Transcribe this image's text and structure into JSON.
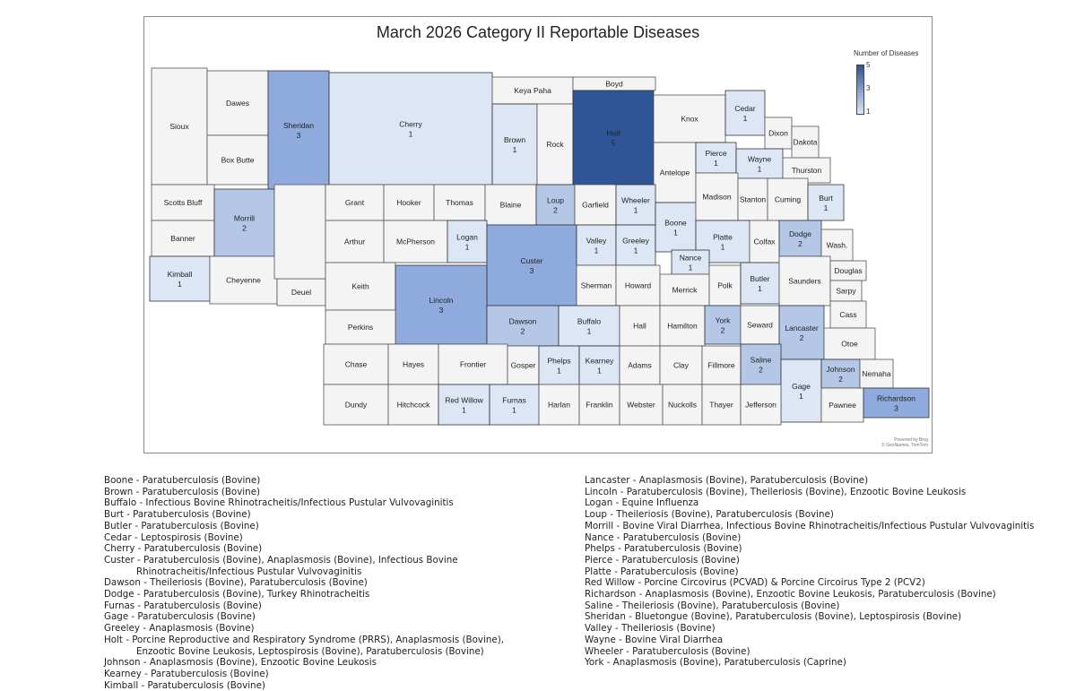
{
  "title": "March 2026 Category II Reportable Diseases",
  "legend": {
    "title": "Number of Diseases",
    "ticks": [
      "5",
      "3",
      "1"
    ],
    "min_color": "#dce6f4",
    "max_color": "#2f5597"
  },
  "credit": [
    "Powered by Bing",
    "© GeoNames, TomTom"
  ],
  "colors": {
    "0": "#f4f4f4",
    "1": "#dce6f4",
    "2": "#b4c7e7",
    "3": "#8faadc",
    "5": "#2f5597"
  },
  "counties": [
    {
      "name": "Sioux"
    },
    {
      "name": "Dawes"
    },
    {
      "name": "Box Butte"
    },
    {
      "name": "Sheridan",
      "count": 3
    },
    {
      "name": "Cherry",
      "count": 1
    },
    {
      "name": "Keya Paha"
    },
    {
      "name": "Boyd"
    },
    {
      "name": "Brown",
      "count": 1
    },
    {
      "name": "Rock"
    },
    {
      "name": "Holt",
      "count": 5
    },
    {
      "name": "Knox"
    },
    {
      "name": "Cedar",
      "count": 1
    },
    {
      "name": "Dixon"
    },
    {
      "name": "Dakota"
    },
    {
      "name": "Antelope"
    },
    {
      "name": "Pierce",
      "count": 1
    },
    {
      "name": "Wayne",
      "count": 1
    },
    {
      "name": "Thurston"
    },
    {
      "name": "Scotts Bluff"
    },
    {
      "name": "Banner"
    },
    {
      "name": "Kimball",
      "count": 1
    },
    {
      "name": "Morrill",
      "count": 2
    },
    {
      "name": "Cheyenne"
    },
    {
      "name": "Deuel"
    },
    {
      "name": ""
    },
    {
      "name": "Grant"
    },
    {
      "name": "Hooker"
    },
    {
      "name": "Thomas"
    },
    {
      "name": "Blaine"
    },
    {
      "name": "Loup",
      "count": 2
    },
    {
      "name": "Garfield"
    },
    {
      "name": "Wheeler",
      "count": 1
    },
    {
      "name": "Arthur"
    },
    {
      "name": "McPherson"
    },
    {
      "name": "Logan",
      "count": 1
    },
    {
      "name": "Custer",
      "count": 3
    },
    {
      "name": "Valley",
      "count": 1
    },
    {
      "name": "Greeley",
      "count": 1
    },
    {
      "name": "Boone",
      "count": 1
    },
    {
      "name": "Madison"
    },
    {
      "name": "Stanton"
    },
    {
      "name": "Cuming"
    },
    {
      "name": "Burt",
      "count": 1
    },
    {
      "name": "Platte",
      "count": 1
    },
    {
      "name": "Colfax"
    },
    {
      "name": "Dodge",
      "count": 2
    },
    {
      "name": "Wash."
    },
    {
      "name": "Nance",
      "count": 1
    },
    {
      "name": "Keith"
    },
    {
      "name": "Lincoln",
      "count": 3
    },
    {
      "name": "Perkins"
    },
    {
      "name": "Sherman"
    },
    {
      "name": "Howard"
    },
    {
      "name": "Merrick"
    },
    {
      "name": "Polk"
    },
    {
      "name": "Butler",
      "count": 1
    },
    {
      "name": "Saunders"
    },
    {
      "name": "Douglas"
    },
    {
      "name": "Sarpy"
    },
    {
      "name": "Cass"
    },
    {
      "name": "Dawson",
      "count": 2
    },
    {
      "name": "Buffalo",
      "count": 1
    },
    {
      "name": "Hall"
    },
    {
      "name": "Hamilton"
    },
    {
      "name": "York",
      "count": 2
    },
    {
      "name": "Seward"
    },
    {
      "name": "Lancaster",
      "count": 2
    },
    {
      "name": "Otoe"
    },
    {
      "name": "Chase"
    },
    {
      "name": "Hayes"
    },
    {
      "name": "Frontier"
    },
    {
      "name": "Gosper"
    },
    {
      "name": "Phelps",
      "count": 1
    },
    {
      "name": "Kearney",
      "count": 1
    },
    {
      "name": "Adams"
    },
    {
      "name": "Clay"
    },
    {
      "name": "Fillmore"
    },
    {
      "name": "Saline",
      "count": 2
    },
    {
      "name": "Gage",
      "count": 1
    },
    {
      "name": "Johnson",
      "count": 2
    },
    {
      "name": "Nemaha"
    },
    {
      "name": "Dundy"
    },
    {
      "name": "Hitchcock"
    },
    {
      "name": "Red Willow",
      "count": 1
    },
    {
      "name": "Furnas",
      "count": 1
    },
    {
      "name": "Harlan"
    },
    {
      "name": "Franklin"
    },
    {
      "name": "Webster"
    },
    {
      "name": "Nuckolls"
    },
    {
      "name": "Thayer"
    },
    {
      "name": "Jefferson"
    },
    {
      "name": "Pawnee"
    },
    {
      "name": "Richardson",
      "count": 3
    }
  ],
  "list_left": [
    {
      "text": "Boone - Paratuberculosis (Bovine)"
    },
    {
      "text": "Brown - Paratuberculosis (Bovine)"
    },
    {
      "text": "Buffalo - Infectious Bovine Rhinotracheitis/Infectious Pustular Vulvovaginitis"
    },
    {
      "text": "Burt - Paratuberculosis (Bovine)"
    },
    {
      "text": "Butler - Paratuberculosis (Bovine)"
    },
    {
      "text": "Cedar - Leptospirosis (Bovine)"
    },
    {
      "text": "Cherry - Paratuberculosis (Bovine)"
    },
    {
      "text": "Custer - Paratuberculosis (Bovine), Anaplasmosis (Bovine), Infectious Bovine"
    },
    {
      "text": "Rhinotracheitis/Infectious Pustular Vulvovaginitis",
      "cont": true
    },
    {
      "text": "Dawson - Theileriosis (Bovine), Paratuberculosis (Bovine)"
    },
    {
      "text": "Dodge - Paratuberculosis (Bovine), Turkey Rhinotracheitis"
    },
    {
      "text": "Furnas - Paratuberculosis (Bovine)"
    },
    {
      "text": "Gage - Paratuberculosis (Bovine)"
    },
    {
      "text": "Greeley - Anaplasmosis (Bovine)"
    },
    {
      "text": "Holt - Porcine Reproductive and Respiratory Syndrome (PRRS), Anaplasmosis (Bovine),"
    },
    {
      "text": "Enzootic Bovine Leukosis, Leptospirosis (Bovine), Paratuberculosis (Bovine)",
      "cont": true
    },
    {
      "text": "Johnson - Anaplasmosis (Bovine), Enzootic Bovine Leukosis"
    },
    {
      "text": "Kearney - Paratuberculosis (Bovine)"
    },
    {
      "text": "Kimball - Paratuberculosis (Bovine)"
    }
  ],
  "list_right": [
    {
      "text": "Lancaster - Anaplasmosis (Bovine), Paratuberculosis (Bovine)"
    },
    {
      "text": "Lincoln - Paratuberculosis (Bovine), Theileriosis (Bovine), Enzootic Bovine Leukosis"
    },
    {
      "text": "Logan - Equine Influenza"
    },
    {
      "text": "Loup - Theileriosis (Bovine), Paratuberculosis (Bovine)"
    },
    {
      "text": "Morrill - Bovine Viral Diarrhea, Infectious Bovine Rhinotracheitis/Infectious Pustular Vulvovaginitis"
    },
    {
      "text": "Nance - Paratuberculosis (Bovine)"
    },
    {
      "text": "Phelps - Paratuberculosis (Bovine)"
    },
    {
      "text": "Pierce - Paratuberculosis (Bovine)"
    },
    {
      "text": "Platte - Paratuberculosis (Bovine)"
    },
    {
      "text": "Red Willow - Porcine Circovirus (PCVAD) & Porcine Circoirus Type 2 (PCV2)"
    },
    {
      "text": "Richardson - Anaplasmosis (Bovine), Enzootic Bovine Leukosis, Paratuberculosis (Bovine)"
    },
    {
      "text": "Saline - Theileriosis (Bovine), Paratuberculosis (Bovine)"
    },
    {
      "text": "Sheridan - Bluetongue (Bovine), Paratuberculosis (Bovine), Leptospirosis (Bovine)"
    },
    {
      "text": "Valley - Theileriosis (Bovine)"
    },
    {
      "text": "Wayne - Bovine Viral Diarrhea"
    },
    {
      "text": "Wheeler - Paratuberculosis (Bovine)"
    },
    {
      "text": "York - Anaplasmosis (Bovine), Paratuberculosis (Caprine)"
    }
  ]
}
